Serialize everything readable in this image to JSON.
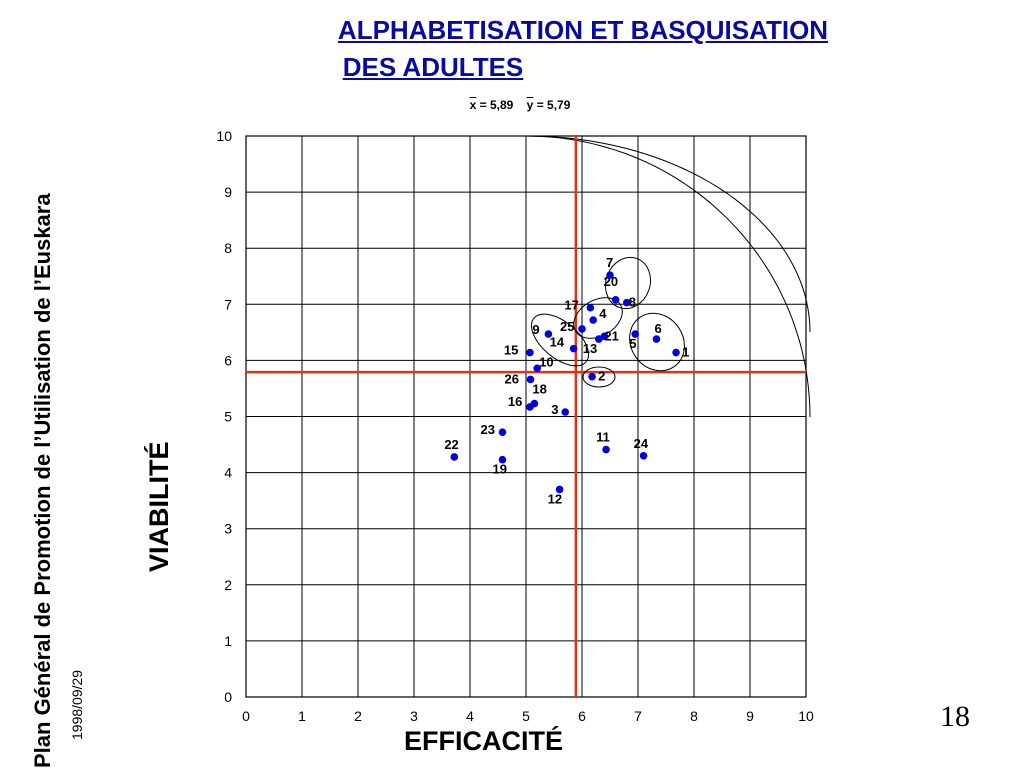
{
  "chart_data": {
    "type": "scatter",
    "title_line1": "ALPHABETISATION ET BASQUISATION",
    "title_line2": "DES ADULTES",
    "stats": {
      "x_label": "x",
      "x_value": " = 5,89",
      "y_label": "y",
      "y_value": " = 5,79"
    },
    "xlabel": "EFFICACITÉ",
    "ylabel": "VIABILITÉ",
    "xlim": [
      0,
      10
    ],
    "ylim": [
      0,
      10
    ],
    "xticks": [
      "0",
      "1",
      "2",
      "3",
      "4",
      "5",
      "6",
      "7",
      "8",
      "9",
      "10"
    ],
    "yticks": [
      "0",
      "1",
      "2",
      "3",
      "4",
      "5",
      "6",
      "7",
      "8",
      "9",
      "10"
    ],
    "grid": true,
    "mean_x": 5.89,
    "mean_y": 5.79,
    "points": [
      {
        "label": "1",
        "x": 7.68,
        "y": 6.14
      },
      {
        "label": "2",
        "x": 6.18,
        "y": 5.71
      },
      {
        "label": "3",
        "x": 5.7,
        "y": 5.08
      },
      {
        "label": "4",
        "x": 6.2,
        "y": 6.72
      },
      {
        "label": "5",
        "x": 6.95,
        "y": 6.47
      },
      {
        "label": "6",
        "x": 7.33,
        "y": 6.38
      },
      {
        "label": "7",
        "x": 6.5,
        "y": 7.52
      },
      {
        "label": "8",
        "x": 6.8,
        "y": 7.03
      },
      {
        "label": "9",
        "x": 5.4,
        "y": 6.47
      },
      {
        "label": "10",
        "x": 5.2,
        "y": 5.86
      },
      {
        "label": "11",
        "x": 6.43,
        "y": 4.41
      },
      {
        "label": "12",
        "x": 5.6,
        "y": 3.7
      },
      {
        "label": "13",
        "x": 6.3,
        "y": 6.38
      },
      {
        "label": "14",
        "x": 5.85,
        "y": 6.21
      },
      {
        "label": "15",
        "x": 5.07,
        "y": 6.14
      },
      {
        "label": "16",
        "x": 5.07,
        "y": 5.17
      },
      {
        "label": "17",
        "x": 6.15,
        "y": 6.94
      },
      {
        "label": "18",
        "x": 5.15,
        "y": 5.23
      },
      {
        "label": "19",
        "x": 4.58,
        "y": 4.23
      },
      {
        "label": "20",
        "x": 6.6,
        "y": 7.08
      },
      {
        "label": "21",
        "x": 6.4,
        "y": 6.43
      },
      {
        "label": "22",
        "x": 3.72,
        "y": 4.28
      },
      {
        "label": "23",
        "x": 4.58,
        "y": 4.72
      },
      {
        "label": "24",
        "x": 7.1,
        "y": 4.3
      },
      {
        "label": "25",
        "x": 6.0,
        "y": 6.56
      },
      {
        "label": "26",
        "x": 5.08,
        "y": 5.66
      }
    ],
    "colors": {
      "points": "#0000dd",
      "mean_lines": "#e83010",
      "grid": "#000000",
      "title": "#0a0aa0"
    }
  },
  "sidebar": {
    "title": "Plan Général de Promotion de l’Utilisation de l’Euskara",
    "date": "1998/09/29"
  },
  "page_number": "18"
}
